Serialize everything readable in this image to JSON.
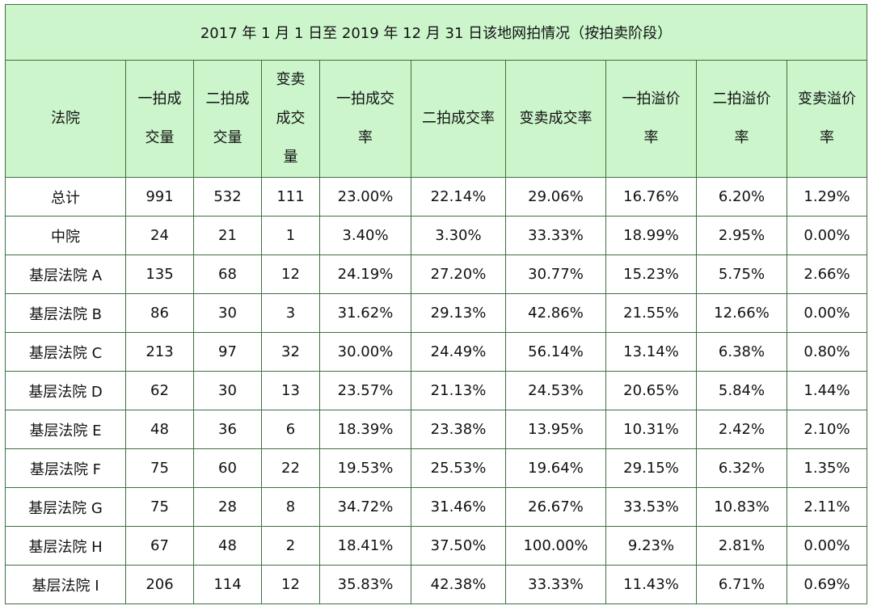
{
  "title": "2017 年 1 月 1 日至 2019 年 12 月 31 日该地网拍情况（按拍卖阶段）",
  "colors": {
    "header_bg": "#ccf5cc",
    "border": "#3f6f3f"
  },
  "headers": [
    [
      "法院"
    ],
    [
      "一拍成",
      "交量"
    ],
    [
      "二拍成",
      "交量"
    ],
    [
      "变卖",
      "成交",
      "量"
    ],
    [
      "一拍成交",
      "率"
    ],
    [
      "二拍成交率"
    ],
    [
      "变卖成交率"
    ],
    [
      "一拍溢价",
      "率"
    ],
    [
      "二拍溢价",
      "率"
    ],
    [
      "变卖溢价",
      "率"
    ]
  ],
  "rows": [
    [
      "总计",
      "991",
      "532",
      "111",
      "23.00%",
      "22.14%",
      "29.06%",
      "16.76%",
      "6.20%",
      "1.29%"
    ],
    [
      "中院",
      "24",
      "21",
      "1",
      "3.40%",
      "3.30%",
      "33.33%",
      "18.99%",
      "2.95%",
      "0.00%"
    ],
    [
      "基层法院 A",
      "135",
      "68",
      "12",
      "24.19%",
      "27.20%",
      "30.77%",
      "15.23%",
      "5.75%",
      "2.66%"
    ],
    [
      "基层法院 B",
      "86",
      "30",
      "3",
      "31.62%",
      "29.13%",
      "42.86%",
      "21.55%",
      "12.66%",
      "0.00%"
    ],
    [
      "基层法院 C",
      "213",
      "97",
      "32",
      "30.00%",
      "24.49%",
      "56.14%",
      "13.14%",
      "6.38%",
      "0.80%"
    ],
    [
      "基层法院 D",
      "62",
      "30",
      "13",
      "23.57%",
      "21.13%",
      "24.53%",
      "20.65%",
      "5.84%",
      "1.44%"
    ],
    [
      "基层法院 E",
      "48",
      "36",
      "6",
      "18.39%",
      "23.38%",
      "13.95%",
      "10.31%",
      "2.42%",
      "2.10%"
    ],
    [
      "基层法院 F",
      "75",
      "60",
      "22",
      "19.53%",
      "25.53%",
      "19.64%",
      "29.15%",
      "6.32%",
      "1.35%"
    ],
    [
      "基层法院 G",
      "75",
      "28",
      "8",
      "34.72%",
      "31.46%",
      "26.67%",
      "33.53%",
      "10.83%",
      "2.11%"
    ],
    [
      "基层法院 H",
      "67",
      "48",
      "2",
      "18.41%",
      "37.50%",
      "100.00%",
      "9.23%",
      "2.81%",
      "0.00%"
    ],
    [
      "基层法院 I",
      "206",
      "114",
      "12",
      "35.83%",
      "42.38%",
      "33.33%",
      "11.43%",
      "6.71%",
      "0.69%"
    ]
  ]
}
